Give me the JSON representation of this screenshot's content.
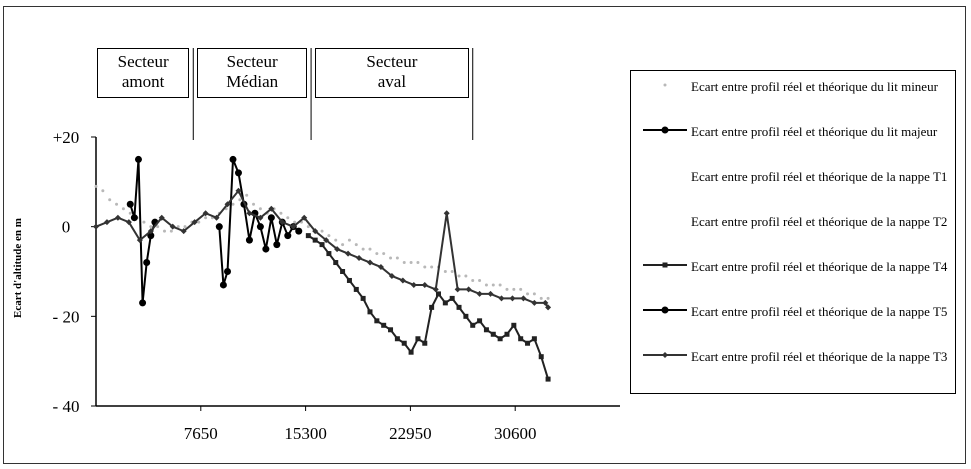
{
  "chart_data": {
    "type": "line",
    "ylabel": "Ecart d'altitude en m",
    "xlabel": "",
    "xlim": [
      0,
      38250
    ],
    "ylim": [
      -40,
      20
    ],
    "x_ticks": [
      7650,
      15300,
      22950,
      30600
    ],
    "y_ticks": [
      20,
      0,
      -20,
      -40
    ],
    "y_tick_labels": [
      "+20",
      "0",
      "- 20",
      "- 40"
    ],
    "sectors": [
      {
        "label": "Secteur\namont",
        "x_start": 0,
        "x_end": 7100
      },
      {
        "label": "Secteur\nMédian",
        "x_start": 7100,
        "x_end": 15700
      },
      {
        "label": "Secteur\naval",
        "x_start": 15700,
        "x_end": 27500
      }
    ],
    "legend_position": "right",
    "series": [
      {
        "name": "Ecart entre profil réel et théorique du lit mineur",
        "marker": "dot-light",
        "color": "#b8b8b8",
        "x": [
          0,
          500,
          1000,
          1500,
          2000,
          2500,
          3000,
          3500,
          4000,
          4500,
          5000,
          5500,
          6000,
          6500,
          7000,
          7500,
          8000,
          8500,
          9000,
          9500,
          10000,
          10500,
          11000,
          11500,
          12000,
          12500,
          13000,
          13500,
          14000,
          14500,
          15000,
          15500,
          16000,
          16500,
          17000,
          17500,
          18000,
          18500,
          19000,
          19500,
          20000,
          20500,
          21000,
          21500,
          22000,
          22500,
          23000,
          23500,
          24000,
          24500,
          25000,
          25500,
          26000,
          26500,
          27000,
          27500,
          28000,
          28500,
          29000,
          29500,
          30000,
          30500,
          31000,
          31500,
          32000,
          32500,
          33000
        ],
        "y": [
          9,
          8,
          6,
          5,
          4,
          3,
          2,
          1,
          0,
          0,
          -1,
          -1,
          0,
          0,
          1,
          1,
          2,
          2,
          3,
          4,
          5,
          6,
          7,
          5,
          4,
          3,
          4,
          3,
          2,
          1,
          1,
          0,
          -1,
          -1,
          -2,
          -3,
          -4,
          -3,
          -4,
          -5,
          -5,
          -6,
          -6,
          -7,
          -7,
          -8,
          -8,
          -8,
          -9,
          -9,
          -9,
          -10,
          -10,
          -11,
          -11,
          -12,
          -12,
          -13,
          -13,
          -13,
          -14,
          -14,
          -14,
          -15,
          -15,
          -16,
          -16
        ]
      },
      {
        "name": "Ecart entre profil réel et théorique du lit majeur",
        "marker": "circle",
        "color": "#000000",
        "x": [
          9000,
          9300,
          9600,
          10000,
          10400,
          10800,
          11200,
          11600,
          12000,
          12400,
          12800,
          13200,
          13600,
          14000,
          14400,
          14800
        ],
        "y": [
          0,
          -13,
          -10,
          15,
          12,
          5,
          -3,
          3,
          0,
          -5,
          2,
          -4,
          1,
          -2,
          0,
          -1
        ]
      },
      {
        "name": "Ecart entre profil réel et théorique de la nappe T1",
        "marker": "none",
        "color": "#ffffff",
        "x": [],
        "y": []
      },
      {
        "name": "Ecart entre profil réel et théorique de la nappe T2",
        "marker": "none",
        "color": "#ffffff",
        "x": [],
        "y": []
      },
      {
        "name": "Ecart entre profil réel et théorique de la nappe T4",
        "marker": "square",
        "color": "#222222",
        "x": [
          15500,
          16000,
          16500,
          17000,
          17500,
          18000,
          18500,
          19000,
          19500,
          20000,
          20500,
          21000,
          21500,
          22000,
          22500,
          23000,
          23500,
          24000,
          24500,
          25000,
          25500,
          26000,
          26500,
          27000,
          27500,
          28000,
          28500,
          29000,
          29500,
          30000,
          30500,
          31000,
          31500,
          32000,
          32500,
          33000
        ],
        "y": [
          -2,
          -3,
          -4,
          -6,
          -8,
          -10,
          -12,
          -14,
          -16,
          -19,
          -21,
          -22,
          -23,
          -25,
          -26,
          -28,
          -25,
          -26,
          -18,
          -15,
          -17,
          -16,
          -18,
          -20,
          -22,
          -21,
          -23,
          -24,
          -25,
          -24,
          -22,
          -25,
          -26,
          -25,
          -29,
          -34
        ]
      },
      {
        "name": "Ecart entre profil réel et théorique de la nappe T5",
        "marker": "circle",
        "color": "#000000",
        "x": [
          2500,
          2800,
          3100,
          3400,
          3700,
          4000,
          4300
        ],
        "y": [
          5,
          2,
          15,
          -17,
          -8,
          -2,
          1
        ]
      },
      {
        "name": "Ecart entre profil réel et théorique de la nappe T3",
        "marker": "diamond",
        "color": "#333333",
        "x": [
          0,
          800,
          1600,
          2400,
          3200,
          4000,
          4800,
          5600,
          6400,
          7200,
          8000,
          8800,
          9600,
          10400,
          11200,
          12000,
          12800,
          13600,
          14400,
          15200,
          16000,
          16800,
          17600,
          18400,
          19200,
          20000,
          20800,
          21600,
          22400,
          23200,
          24000,
          24800,
          25600,
          26400,
          27200,
          28000,
          28800,
          29600,
          30400,
          31200,
          32000,
          32800,
          33000
        ],
        "y": [
          0,
          1,
          2,
          1,
          -3,
          -1,
          2,
          0,
          -1,
          1,
          3,
          2,
          5,
          8,
          3,
          2,
          4,
          1,
          0,
          2,
          -1,
          -3,
          -5,
          -6,
          -7,
          -8,
          -9,
          -11,
          -12,
          -13,
          -13,
          -14,
          3,
          -14,
          -14,
          -15,
          -15,
          -16,
          -16,
          -16,
          -17,
          -17,
          -18
        ]
      }
    ]
  }
}
